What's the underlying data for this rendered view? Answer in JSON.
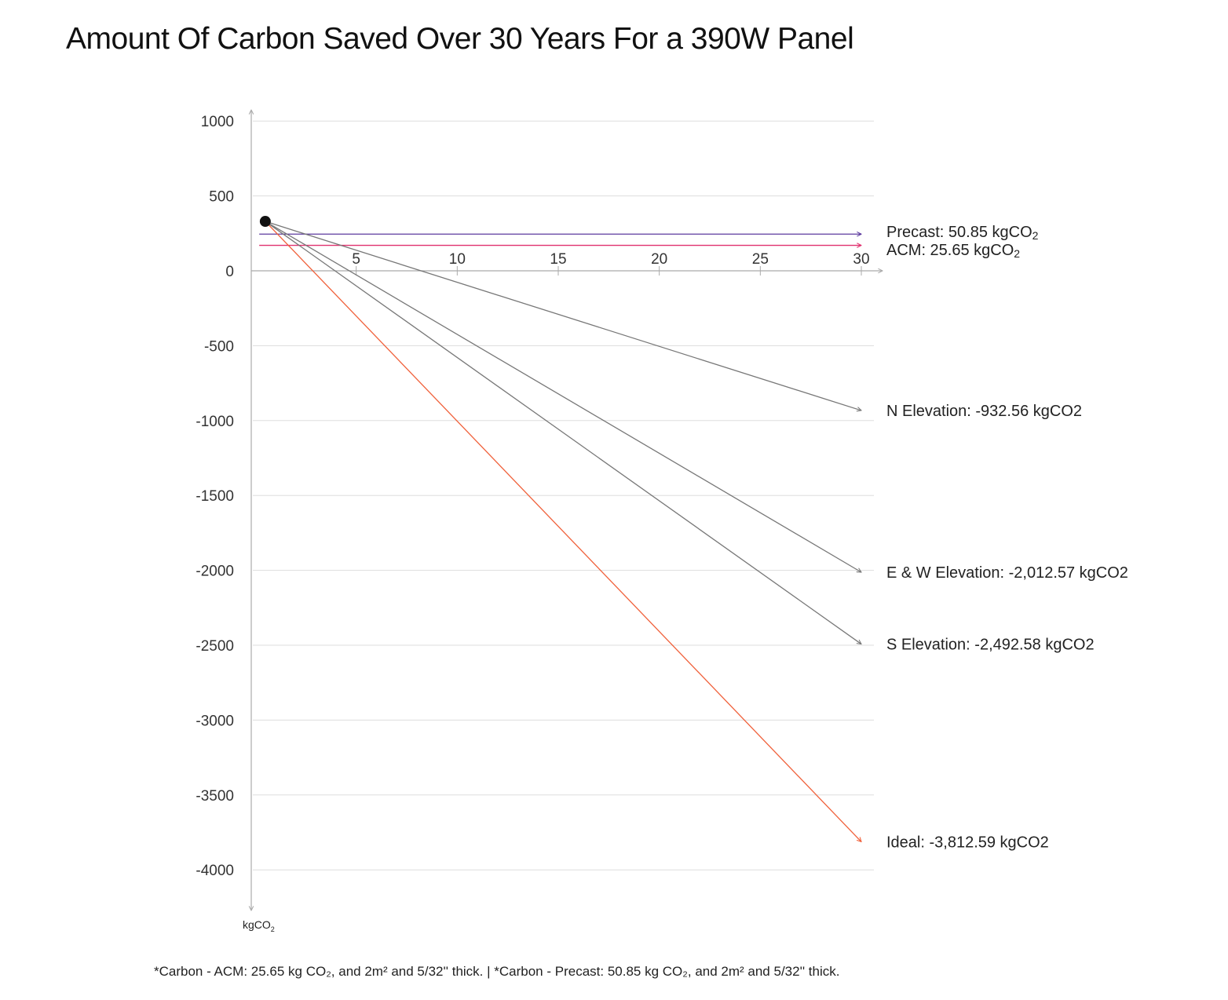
{
  "chart_data": {
    "type": "line",
    "title": "Amount Of Carbon Saved Over 30 Years For a 390W Panel",
    "xlabel": "",
    "ylabel": "kgCO2",
    "xlim": [
      0,
      30
    ],
    "ylim": [
      -4000,
      1000
    ],
    "x_ticks": [
      5,
      10,
      15,
      20,
      25,
      30
    ],
    "x_tick_labels": [
      "5",
      "10",
      "15",
      "20",
      "25",
      "30"
    ],
    "y_ticks": [
      1000,
      500,
      0,
      -500,
      -1000,
      -1500,
      -2000,
      -2500,
      -3000,
      -3500,
      -4000
    ],
    "y_tick_labels": [
      "1000",
      "500",
      "0",
      "-500",
      "-1000",
      "-1500",
      "-2000",
      "-2500",
      "-3000",
      "-3500",
      "-4000"
    ],
    "grid": true,
    "start_point": {
      "x": 0.5,
      "y": 330
    },
    "series": [
      {
        "name": "Precast",
        "label_prefix": "Precast: 50.85 kgCO",
        "label_sub": "2",
        "color": "#5b3a9e",
        "x": [
          0.2,
          30
        ],
        "y": [
          245,
          245
        ]
      },
      {
        "name": "ACM",
        "label_prefix": "ACM: 25.65 kgCO",
        "label_sub": "2",
        "color": "#e0306e",
        "x": [
          0.2,
          30
        ],
        "y": [
          170,
          170
        ]
      },
      {
        "name": "N Elevation",
        "label_prefix": "N Elevation: -932.56 kgCO2",
        "label_sub": "",
        "color": "#777777",
        "x": [
          0.5,
          30
        ],
        "y": [
          330,
          -932.56
        ]
      },
      {
        "name": "E & W Elevation",
        "label_prefix": "E & W Elevation: -2,012.57 kgCO2",
        "label_sub": "",
        "color": "#777777",
        "x": [
          0.5,
          30
        ],
        "y": [
          330,
          -2012.57
        ]
      },
      {
        "name": "S Elevation",
        "label_prefix": "S Elevation: -2,492.58 kgCO2",
        "label_sub": "",
        "color": "#777777",
        "x": [
          0.5,
          30
        ],
        "y": [
          330,
          -2492.58
        ]
      },
      {
        "name": "Ideal",
        "label_prefix": "Ideal: -3,812.59 kgCO2",
        "label_sub": "",
        "color": "#f0603a",
        "x": [
          0.5,
          30
        ],
        "y": [
          330,
          -3812.59
        ]
      }
    ],
    "axis_unit_label": {
      "prefix": "kgCO",
      "sub": "2"
    }
  },
  "footnote": "*Carbon - ACM: 25.65 kg CO₂, and 2m² and 5/32'' thick. | *Carbon - Precast: 50.85 kg CO₂, and 2m² and 5/32'' thick."
}
